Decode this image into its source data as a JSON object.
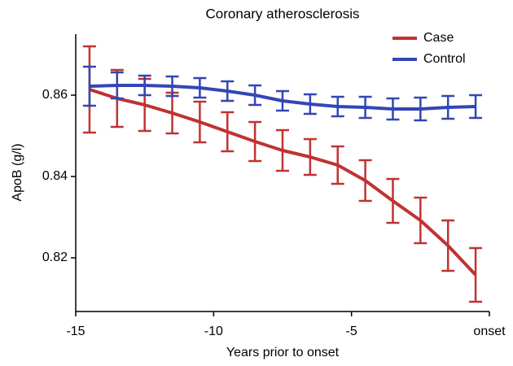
{
  "chart_data": {
    "type": "line",
    "title": "Coronary atherosclerosis",
    "x_label": "Years prior to onset",
    "y_label": "ApoB (g/l)",
    "x": [
      -14.5,
      -13.5,
      -12.5,
      -11.5,
      -10.5,
      -9.5,
      -8.5,
      -7.5,
      -6.5,
      -5.5,
      -4.5,
      -3.5,
      -2.5,
      -1.5,
      -0.5
    ],
    "series": [
      {
        "name": "Case",
        "color": "#c03232",
        "values": [
          0.8614,
          0.8592,
          0.8576,
          0.8556,
          0.8534,
          0.851,
          0.8486,
          0.8464,
          0.8448,
          0.8428,
          0.839,
          0.834,
          0.8292,
          0.823,
          0.8158
        ],
        "errors": [
          0.0106,
          0.007,
          0.0064,
          0.005,
          0.005,
          0.0048,
          0.0048,
          0.005,
          0.0044,
          0.0046,
          0.005,
          0.0054,
          0.0056,
          0.0062,
          0.0066
        ]
      },
      {
        "name": "Control",
        "color": "#3246b4",
        "values": [
          0.8622,
          0.8624,
          0.8624,
          0.8622,
          0.8618,
          0.861,
          0.86,
          0.8586,
          0.8578,
          0.8572,
          0.857,
          0.8566,
          0.8566,
          0.857,
          0.8572
        ],
        "errors": [
          0.0048,
          0.0032,
          0.0024,
          0.0024,
          0.0024,
          0.0024,
          0.0024,
          0.0024,
          0.0024,
          0.0024,
          0.0026,
          0.0026,
          0.0028,
          0.0028,
          0.0028
        ]
      }
    ],
    "xlim": [
      -15,
      0
    ],
    "xticks": [
      -15,
      -10,
      -5,
      {
        "value": 0,
        "label": "onset"
      }
    ],
    "ylim": [
      0.8068,
      0.875
    ],
    "yticks": [
      0.82,
      0.84,
      0.86
    ],
    "legend": "upper right"
  }
}
